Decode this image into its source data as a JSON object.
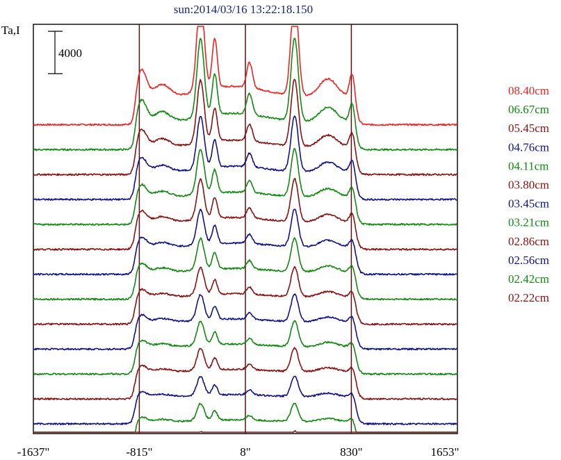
{
  "chart_data": {
    "type": "line",
    "title": "sun:2014/03/16 13:22:18.150",
    "ylabel": "Ta,I",
    "scale_bar_label": "4000",
    "x_tick_labels": [
      "-1637\"",
      "-815\"",
      "8\"",
      "830\"",
      "1653\""
    ],
    "x_ticks": [
      -1637,
      -815,
      8,
      830,
      1653
    ],
    "xlim": [
      -1637,
      1653
    ],
    "vertical_markers": [
      -815,
      8,
      830
    ],
    "colors": {
      "title": "#1a237e",
      "axis": "#000000",
      "marker": "#5a1010"
    },
    "legend": [
      {
        "label": "08.40cm",
        "color": "#ee2222"
      },
      {
        "label": "06.67cm",
        "color": "#118811"
      },
      {
        "label": "05.45cm",
        "color": "#881111"
      },
      {
        "label": "04.76cm",
        "color": "#111188"
      },
      {
        "label": "04.11cm",
        "color": "#118811"
      },
      {
        "label": "03.80cm",
        "color": "#881111"
      },
      {
        "label": "03.45cm",
        "color": "#111188"
      },
      {
        "label": "03.21cm",
        "color": "#118811"
      },
      {
        "label": "02.86cm",
        "color": "#881111"
      },
      {
        "label": "02.56cm",
        "color": "#111188"
      },
      {
        "label": "02.42cm",
        "color": "#118811"
      },
      {
        "label": "02.22cm",
        "color": "#881111"
      }
    ],
    "series": [
      {
        "color": "#ee2222",
        "offset": 14.4,
        "scale": 1.0
      },
      {
        "color": "#118811",
        "offset": 13.2,
        "scale": 0.82
      },
      {
        "color": "#881111",
        "offset": 12.0,
        "scale": 0.66
      },
      {
        "color": "#111188",
        "offset": 10.8,
        "scale": 0.55
      },
      {
        "color": "#118811",
        "offset": 9.6,
        "scale": 0.47
      },
      {
        "color": "#881111",
        "offset": 8.4,
        "scale": 0.42
      },
      {
        "color": "#111188",
        "offset": 7.2,
        "scale": 0.37
      },
      {
        "color": "#118811",
        "offset": 6.0,
        "scale": 0.33
      },
      {
        "color": "#881111",
        "offset": 4.8,
        "scale": 0.29
      },
      {
        "color": "#111188",
        "offset": 3.6,
        "scale": 0.27
      },
      {
        "color": "#118811",
        "offset": 2.4,
        "scale": 0.25
      },
      {
        "color": "#881111",
        "offset": 1.2,
        "scale": 0.23
      },
      {
        "color": "#111188",
        "offset": 0.0,
        "scale": 0.2
      },
      {
        "color": "#118811",
        "offset": -1.2,
        "scale": 0.18
      },
      {
        "color": "#881111",
        "offset": -2.4,
        "scale": 0.15
      }
    ]
  }
}
